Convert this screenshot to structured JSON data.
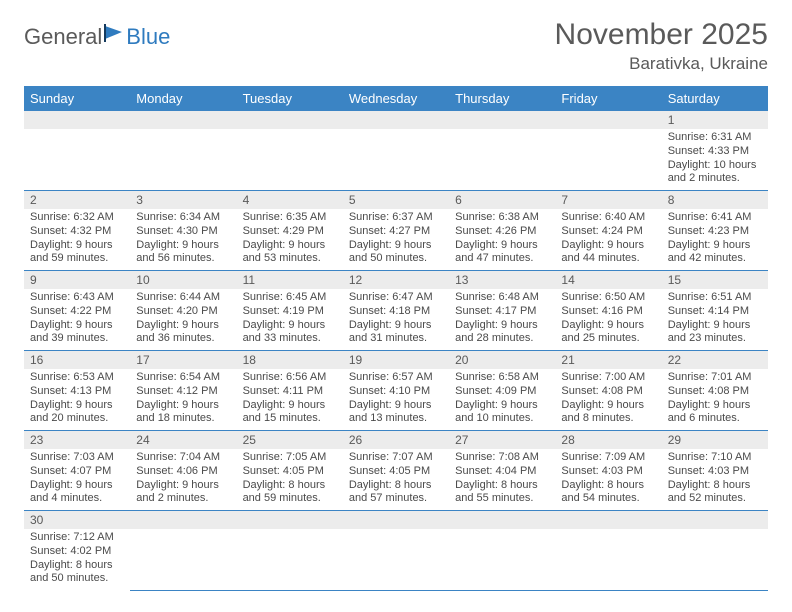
{
  "brand": {
    "part1": "General",
    "part2": "Blue"
  },
  "title": "November 2025",
  "location": "Barativka, Ukraine",
  "colors": {
    "header_bg": "#3b84c4",
    "header_text": "#ffffff",
    "daynum_bg": "#ececec",
    "text": "#4a4a4a",
    "rule": "#3b84c4"
  },
  "dayNames": [
    "Sunday",
    "Monday",
    "Tuesday",
    "Wednesday",
    "Thursday",
    "Friday",
    "Saturday"
  ],
  "weeks": [
    [
      null,
      null,
      null,
      null,
      null,
      null,
      {
        "n": "1",
        "sr": "6:31 AM",
        "ss": "4:33 PM",
        "dl": "10 hours and 2 minutes."
      }
    ],
    [
      {
        "n": "2",
        "sr": "6:32 AM",
        "ss": "4:32 PM",
        "dl": "9 hours and 59 minutes."
      },
      {
        "n": "3",
        "sr": "6:34 AM",
        "ss": "4:30 PM",
        "dl": "9 hours and 56 minutes."
      },
      {
        "n": "4",
        "sr": "6:35 AM",
        "ss": "4:29 PM",
        "dl": "9 hours and 53 minutes."
      },
      {
        "n": "5",
        "sr": "6:37 AM",
        "ss": "4:27 PM",
        "dl": "9 hours and 50 minutes."
      },
      {
        "n": "6",
        "sr": "6:38 AM",
        "ss": "4:26 PM",
        "dl": "9 hours and 47 minutes."
      },
      {
        "n": "7",
        "sr": "6:40 AM",
        "ss": "4:24 PM",
        "dl": "9 hours and 44 minutes."
      },
      {
        "n": "8",
        "sr": "6:41 AM",
        "ss": "4:23 PM",
        "dl": "9 hours and 42 minutes."
      }
    ],
    [
      {
        "n": "9",
        "sr": "6:43 AM",
        "ss": "4:22 PM",
        "dl": "9 hours and 39 minutes."
      },
      {
        "n": "10",
        "sr": "6:44 AM",
        "ss": "4:20 PM",
        "dl": "9 hours and 36 minutes."
      },
      {
        "n": "11",
        "sr": "6:45 AM",
        "ss": "4:19 PM",
        "dl": "9 hours and 33 minutes."
      },
      {
        "n": "12",
        "sr": "6:47 AM",
        "ss": "4:18 PM",
        "dl": "9 hours and 31 minutes."
      },
      {
        "n": "13",
        "sr": "6:48 AM",
        "ss": "4:17 PM",
        "dl": "9 hours and 28 minutes."
      },
      {
        "n": "14",
        "sr": "6:50 AM",
        "ss": "4:16 PM",
        "dl": "9 hours and 25 minutes."
      },
      {
        "n": "15",
        "sr": "6:51 AM",
        "ss": "4:14 PM",
        "dl": "9 hours and 23 minutes."
      }
    ],
    [
      {
        "n": "16",
        "sr": "6:53 AM",
        "ss": "4:13 PM",
        "dl": "9 hours and 20 minutes."
      },
      {
        "n": "17",
        "sr": "6:54 AM",
        "ss": "4:12 PM",
        "dl": "9 hours and 18 minutes."
      },
      {
        "n": "18",
        "sr": "6:56 AM",
        "ss": "4:11 PM",
        "dl": "9 hours and 15 minutes."
      },
      {
        "n": "19",
        "sr": "6:57 AM",
        "ss": "4:10 PM",
        "dl": "9 hours and 13 minutes."
      },
      {
        "n": "20",
        "sr": "6:58 AM",
        "ss": "4:09 PM",
        "dl": "9 hours and 10 minutes."
      },
      {
        "n": "21",
        "sr": "7:00 AM",
        "ss": "4:08 PM",
        "dl": "9 hours and 8 minutes."
      },
      {
        "n": "22",
        "sr": "7:01 AM",
        "ss": "4:08 PM",
        "dl": "9 hours and 6 minutes."
      }
    ],
    [
      {
        "n": "23",
        "sr": "7:03 AM",
        "ss": "4:07 PM",
        "dl": "9 hours and 4 minutes."
      },
      {
        "n": "24",
        "sr": "7:04 AM",
        "ss": "4:06 PM",
        "dl": "9 hours and 2 minutes."
      },
      {
        "n": "25",
        "sr": "7:05 AM",
        "ss": "4:05 PM",
        "dl": "8 hours and 59 minutes."
      },
      {
        "n": "26",
        "sr": "7:07 AM",
        "ss": "4:05 PM",
        "dl": "8 hours and 57 minutes."
      },
      {
        "n": "27",
        "sr": "7:08 AM",
        "ss": "4:04 PM",
        "dl": "8 hours and 55 minutes."
      },
      {
        "n": "28",
        "sr": "7:09 AM",
        "ss": "4:03 PM",
        "dl": "8 hours and 54 minutes."
      },
      {
        "n": "29",
        "sr": "7:10 AM",
        "ss": "4:03 PM",
        "dl": "8 hours and 52 minutes."
      }
    ],
    [
      {
        "n": "30",
        "sr": "7:12 AM",
        "ss": "4:02 PM",
        "dl": "8 hours and 50 minutes."
      },
      null,
      null,
      null,
      null,
      null,
      null
    ]
  ],
  "labels": {
    "sunrise": "Sunrise: ",
    "sunset": "Sunset: ",
    "daylight": "Daylight: "
  }
}
